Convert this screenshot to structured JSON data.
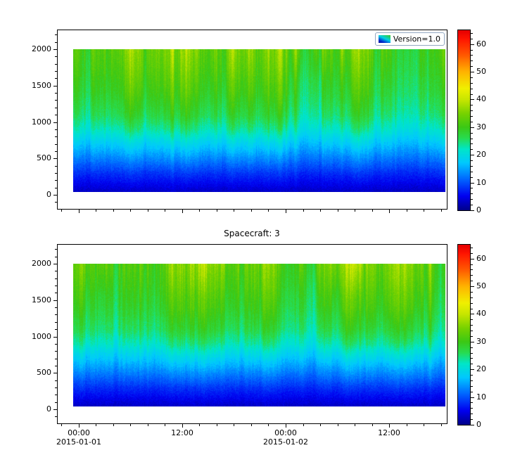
{
  "figure": {
    "background": "#ffffff",
    "text_color": "#000000"
  },
  "icons": {
    "legend_swatch": "mini-spectrogram-swatch"
  },
  "chart_data": {
    "type": "heatmap",
    "description": "Two vertically stacked time-vs-altitude spectrogram panels sharing an x time axis, each with its own jet-style colorbar on the right. Values are low (dark blue) near altitude 0, rise through cyan around 500-900, green above ~1000, with yellow patches near 2000.",
    "panels": [
      {
        "name": "panel-1",
        "legend": "Version=1.0",
        "seed": 1337
      },
      {
        "name": "panel-2",
        "title": "Spacecraft: 3",
        "seed": 9001
      }
    ],
    "x_axis": {
      "start": "2015-01-01 00:00",
      "end": "2015-01-02 18:30",
      "axis_range_hours": [
        -2.5,
        42.75
      ],
      "major_tick_hours": [
        0,
        12,
        24,
        36
      ],
      "major_tick_labels": [
        "00:00",
        "12:00",
        "00:00",
        "12:00"
      ],
      "date_labels": [
        {
          "hour": 0,
          "label": "2015-01-01"
        },
        {
          "hour": 24,
          "label": "2015-01-02"
        }
      ],
      "minor_tick_step_hours": 2
    },
    "y_axis": {
      "range": [
        0,
        2000
      ],
      "major_ticks": [
        0,
        500,
        1000,
        1500,
        2000
      ],
      "major_tick_labels": [
        "0",
        "500",
        "1000",
        "1500",
        "2000"
      ],
      "minor_tick_step": 100
    },
    "colorbar": {
      "range": [
        0,
        65
      ],
      "major_ticks": [
        0,
        10,
        20,
        30,
        40,
        50,
        60
      ],
      "major_tick_labels": [
        "0",
        "10",
        "20",
        "30",
        "40",
        "50",
        "60"
      ],
      "minor_tick_step": 2,
      "colormap_stops": [
        [
          0,
          "#00008C"
        ],
        [
          5,
          "#0000F0"
        ],
        [
          11,
          "#0064FF"
        ],
        [
          17,
          "#00C8FF"
        ],
        [
          22,
          "#00E6C8"
        ],
        [
          26,
          "#28DC50"
        ],
        [
          30,
          "#3CC814"
        ],
        [
          35,
          "#78D200"
        ],
        [
          40,
          "#C8E600"
        ],
        [
          44,
          "#F0F000"
        ],
        [
          50,
          "#FFB400"
        ],
        [
          56,
          "#FF5A00"
        ],
        [
          62,
          "#FF1400"
        ],
        [
          65,
          "#E60000"
        ]
      ]
    },
    "value_profile": {
      "altitude_km": [
        0,
        100,
        300,
        500,
        700,
        900,
        1100,
        1400,
        1700,
        2000
      ],
      "mean_value": [
        2,
        4,
        8,
        13,
        18,
        23,
        26.5,
        29.5,
        31.5,
        33
      ]
    },
    "texture": {
      "column_noise_amplitude": 0.17,
      "fine_noise_amplitude": 1.2,
      "top_patch_boost": 7
    }
  }
}
